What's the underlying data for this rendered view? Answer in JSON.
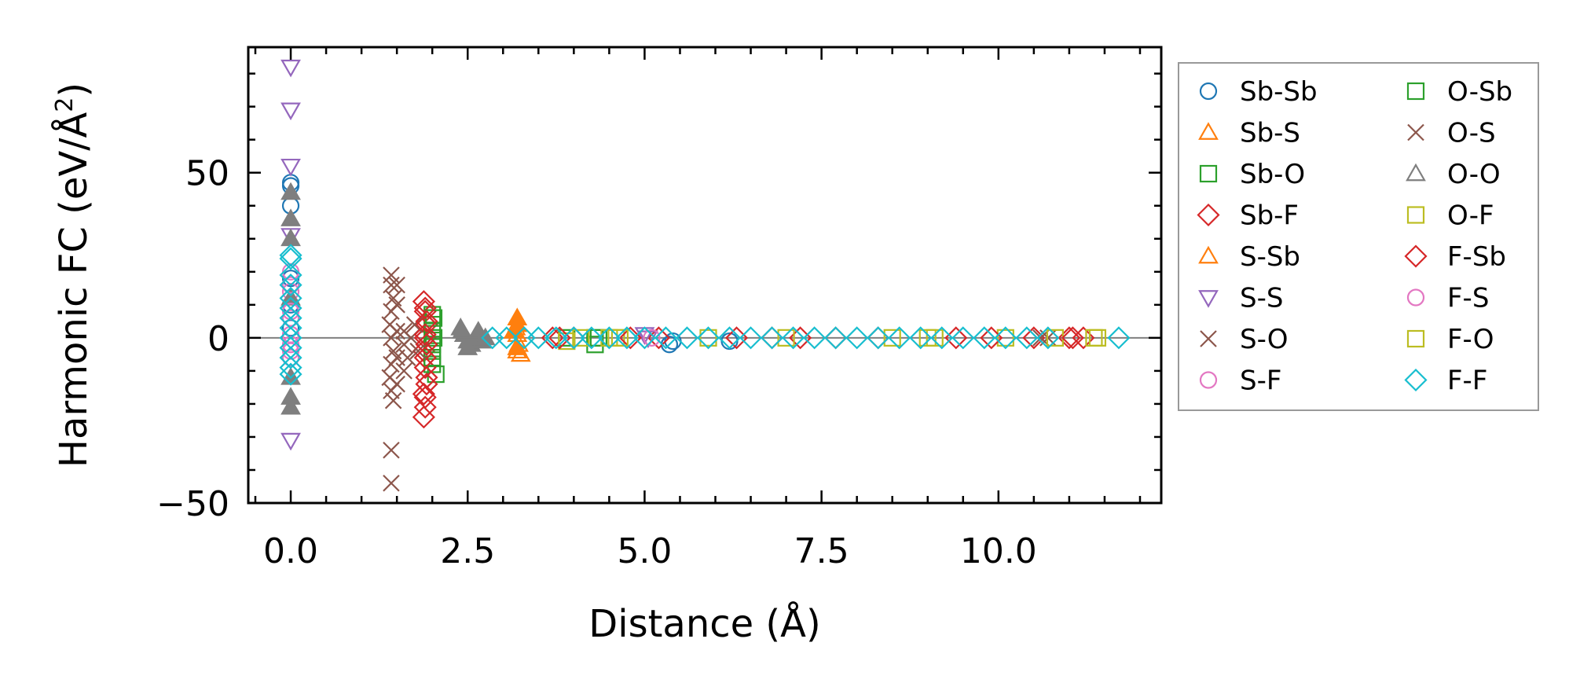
{
  "chart_data": {
    "type": "scatter",
    "xlabel": "Distance (Å)",
    "ylabel_main": "Harmonic FC (eV/Å",
    "ylabel_sup": "2",
    "ylabel_close": ")",
    "xlim": [
      -0.6,
      12.3
    ],
    "ylim": [
      -50,
      88
    ],
    "xticks": [
      0.0,
      2.5,
      5.0,
      7.5,
      10.0
    ],
    "xtick_labels": [
      "0.0",
      "2.5",
      "5.0",
      "7.5",
      "10.0"
    ],
    "yticks": [
      -50,
      0,
      50
    ],
    "ytick_labels": [
      "−50",
      "0",
      "50"
    ],
    "zero_line": true,
    "grid": false,
    "legend_position": "outside-right",
    "series": [
      {
        "name": "Sb-Sb",
        "marker": "circle",
        "color": "#1f77b4",
        "filled": false,
        "points": [
          [
            0.0,
            47
          ],
          [
            0.0,
            46
          ],
          [
            0.0,
            40
          ],
          [
            0.0,
            18
          ],
          [
            0.0,
            10
          ],
          [
            0.0,
            3
          ],
          [
            5.35,
            -2
          ],
          [
            5.4,
            -1
          ],
          [
            6.2,
            -1
          ]
        ]
      },
      {
        "name": "Sb-S",
        "marker": "triangle-up",
        "color": "#ff7f0e",
        "filled": false,
        "points": [
          [
            3.18,
            3
          ],
          [
            3.2,
            1
          ],
          [
            3.22,
            -2
          ],
          [
            3.2,
            -4
          ],
          [
            3.25,
            -5
          ]
        ]
      },
      {
        "name": "Sb-O",
        "marker": "square",
        "color": "#2ca02c",
        "filled": false,
        "points": [
          [
            2.0,
            7
          ],
          [
            2.0,
            4
          ],
          [
            2.02,
            0
          ],
          [
            2.0,
            -4
          ],
          [
            2.0,
            -8
          ],
          [
            2.05,
            -11
          ],
          [
            3.9,
            0
          ],
          [
            4.3,
            -2
          ],
          [
            4.3,
            0
          ]
        ]
      },
      {
        "name": "Sb-F",
        "marker": "diamond",
        "color": "#d62728",
        "filled": false,
        "points": [
          [
            1.88,
            11
          ],
          [
            1.9,
            8
          ],
          [
            1.92,
            4
          ],
          [
            1.9,
            0
          ],
          [
            1.88,
            -4
          ],
          [
            1.9,
            -9
          ],
          [
            1.92,
            -12
          ],
          [
            1.88,
            -17
          ],
          [
            1.9,
            -21
          ],
          [
            1.88,
            -24
          ],
          [
            3.7,
            0
          ],
          [
            4.0,
            0
          ],
          [
            5.2,
            0
          ],
          [
            6.3,
            0
          ],
          [
            6.8,
            0
          ],
          [
            7.7,
            0
          ],
          [
            8.3,
            0
          ],
          [
            9.4,
            0
          ],
          [
            10.5,
            0
          ],
          [
            11.0,
            0
          ],
          [
            11.2,
            0
          ]
        ]
      },
      {
        "name": "S-Sb",
        "marker": "triangle-up",
        "color": "#ff7f0e",
        "filled": true,
        "points": [
          [
            3.2,
            6
          ],
          [
            3.2,
            4
          ],
          [
            3.15,
            2
          ],
          [
            3.2,
            -3
          ]
        ]
      },
      {
        "name": "S-S",
        "marker": "triangle-down",
        "color": "#9467bd",
        "filled": false,
        "points": [
          [
            0.0,
            82
          ],
          [
            0.0,
            69
          ],
          [
            0.0,
            52
          ],
          [
            0.0,
            31
          ],
          [
            0.0,
            -31
          ],
          [
            5.0,
            1
          ],
          [
            5.05,
            0
          ]
        ]
      },
      {
        "name": "S-O",
        "marker": "x",
        "color": "#8c564b",
        "filled": false,
        "points": [
          [
            1.42,
            19
          ],
          [
            1.42,
            16
          ],
          [
            1.45,
            12
          ],
          [
            1.42,
            8
          ],
          [
            1.4,
            4
          ],
          [
            1.42,
            0
          ],
          [
            1.45,
            -4
          ],
          [
            1.42,
            -8
          ],
          [
            1.4,
            -12
          ],
          [
            1.42,
            -16
          ],
          [
            1.45,
            -19
          ],
          [
            1.42,
            -34
          ],
          [
            1.42,
            -44
          ],
          [
            1.6,
            2
          ],
          [
            1.6,
            -2
          ],
          [
            1.65,
            -6
          ],
          [
            1.7,
            0
          ],
          [
            1.6,
            -10
          ]
        ]
      },
      {
        "name": "S-F",
        "marker": "circle",
        "color": "#e377c2",
        "filled": false,
        "points": [
          [
            0.0,
            20
          ],
          [
            0.0,
            14
          ],
          [
            0.0,
            6
          ],
          [
            0.0,
            -2
          ],
          [
            0.0,
            -6
          ]
        ]
      },
      {
        "name": "O-Sb",
        "marker": "square",
        "color": "#2ca02c",
        "filled": false,
        "points": [
          [
            2.02,
            6
          ],
          [
            2.0,
            2
          ],
          [
            2.0,
            -2
          ],
          [
            2.0,
            -6
          ],
          [
            4.35,
            0
          ]
        ]
      },
      {
        "name": "O-S",
        "marker": "x",
        "color": "#8c564b",
        "filled": false,
        "points": [
          [
            1.5,
            16
          ],
          [
            1.5,
            10
          ],
          [
            1.5,
            2
          ],
          [
            1.5,
            -6
          ],
          [
            1.5,
            -14
          ],
          [
            1.75,
            4
          ],
          [
            1.8,
            -4
          ],
          [
            10.6,
            0
          ],
          [
            10.7,
            0
          ]
        ]
      },
      {
        "name": "O-O",
        "marker": "triangle-up",
        "color": "#7f7f7f",
        "filled": true,
        "points": [
          [
            0.0,
            44
          ],
          [
            0.0,
            36
          ],
          [
            0.0,
            30
          ],
          [
            0.0,
            12
          ],
          [
            0.0,
            -12
          ],
          [
            0.0,
            -18
          ],
          [
            0.0,
            -21
          ],
          [
            2.4,
            3
          ],
          [
            2.45,
            1
          ],
          [
            2.5,
            -1
          ],
          [
            2.55,
            -2
          ],
          [
            2.6,
            0
          ],
          [
            2.65,
            2
          ],
          [
            2.7,
            -1
          ],
          [
            2.75,
            0
          ],
          [
            2.5,
            -3
          ],
          [
            2.42,
            2
          ]
        ]
      },
      {
        "name": "O-F",
        "marker": "square",
        "color": "#bcbd22",
        "filled": false,
        "points": [
          [
            3.9,
            -1
          ],
          [
            4.5,
            0
          ],
          [
            4.6,
            0
          ],
          [
            5.9,
            0
          ],
          [
            8.5,
            0
          ],
          [
            9.1,
            0
          ],
          [
            10.1,
            0
          ],
          [
            10.8,
            0
          ],
          [
            11.4,
            0
          ]
        ]
      },
      {
        "name": "F-Sb",
        "marker": "diamond",
        "color": "#d62728",
        "filled": false,
        "points": [
          [
            1.9,
            9
          ],
          [
            1.92,
            5
          ],
          [
            1.9,
            1
          ],
          [
            1.92,
            -2
          ],
          [
            1.9,
            -6
          ],
          [
            1.92,
            -14
          ],
          [
            1.9,
            -18
          ],
          [
            3.8,
            0
          ],
          [
            4.8,
            0
          ],
          [
            7.2,
            0
          ],
          [
            9.9,
            0
          ],
          [
            11.05,
            0
          ]
        ]
      },
      {
        "name": "F-S",
        "marker": "circle",
        "color": "#e377c2",
        "filled": false,
        "points": [
          [
            0.0,
            16
          ],
          [
            0.0,
            8
          ],
          [
            0.0,
            1
          ],
          [
            0.0,
            -4
          ],
          [
            5.1,
            0
          ]
        ]
      },
      {
        "name": "F-O",
        "marker": "square",
        "color": "#bcbd22",
        "filled": false,
        "points": [
          [
            4.1,
            0
          ],
          [
            4.65,
            0
          ],
          [
            7.0,
            0
          ],
          [
            9.0,
            0
          ],
          [
            11.35,
            0
          ]
        ]
      },
      {
        "name": "F-F",
        "marker": "diamond",
        "color": "#17becf",
        "filled": false,
        "points": [
          [
            0.0,
            25
          ],
          [
            0.0,
            24
          ],
          [
            0.0,
            19
          ],
          [
            0.0,
            16
          ],
          [
            0.0,
            12
          ],
          [
            0.0,
            9
          ],
          [
            0.0,
            6
          ],
          [
            0.0,
            3
          ],
          [
            0.0,
            0
          ],
          [
            0.0,
            -3
          ],
          [
            0.0,
            -6
          ],
          [
            0.0,
            -9
          ],
          [
            0.0,
            -11
          ],
          [
            2.85,
            0
          ],
          [
            3.05,
            0
          ],
          [
            3.3,
            0
          ],
          [
            3.5,
            0
          ],
          [
            3.75,
            0
          ],
          [
            4.0,
            0
          ],
          [
            4.25,
            0
          ],
          [
            4.5,
            0
          ],
          [
            4.75,
            0
          ],
          [
            5.0,
            0
          ],
          [
            5.3,
            0
          ],
          [
            5.6,
            0
          ],
          [
            5.9,
            0
          ],
          [
            6.2,
            0
          ],
          [
            6.5,
            0
          ],
          [
            6.8,
            0
          ],
          [
            7.1,
            0
          ],
          [
            7.4,
            0
          ],
          [
            7.7,
            0
          ],
          [
            8.0,
            0
          ],
          [
            8.3,
            0
          ],
          [
            8.6,
            0
          ],
          [
            8.9,
            0
          ],
          [
            9.2,
            0
          ],
          [
            9.5,
            0
          ],
          [
            9.8,
            0
          ],
          [
            10.1,
            0
          ],
          [
            10.4,
            0
          ],
          [
            10.7,
            0
          ],
          [
            11.7,
            0
          ]
        ]
      }
    ]
  }
}
